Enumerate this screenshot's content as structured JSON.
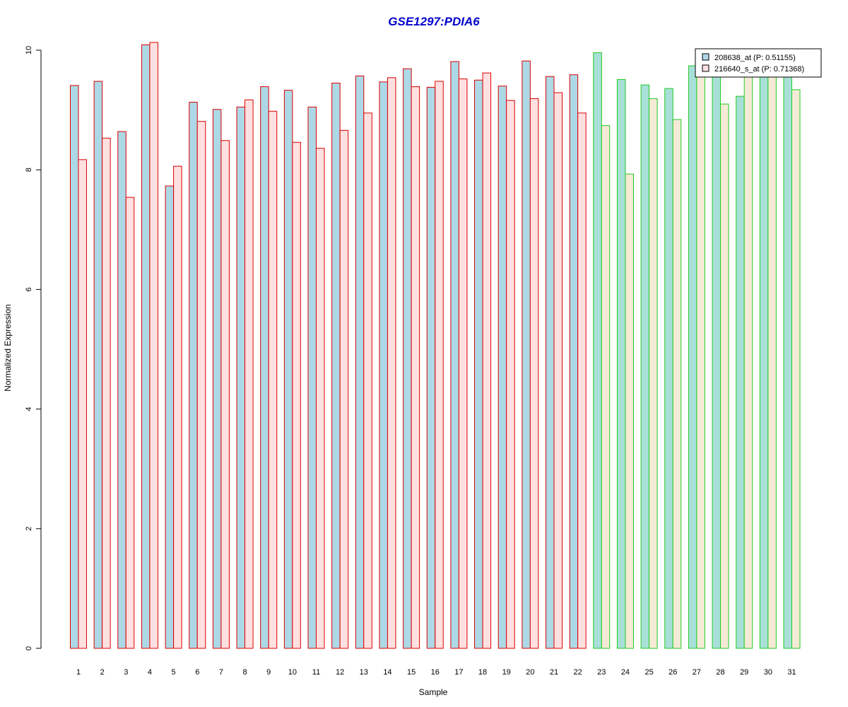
{
  "chart_data": {
    "type": "bar",
    "title": "GSE1297:PDIA6",
    "xlabel": "Sample",
    "ylabel": "Normalized Expression",
    "ylim": [
      0,
      10
    ],
    "yticks": [
      "0",
      "2",
      "4",
      "6",
      "8",
      "10"
    ],
    "categories": [
      "1",
      "2",
      "3",
      "4",
      "5",
      "6",
      "7",
      "8",
      "9",
      "10",
      "11",
      "12",
      "13",
      "14",
      "15",
      "16",
      "17",
      "18",
      "19",
      "20",
      "21",
      "22",
      "23",
      "24",
      "25",
      "26",
      "27",
      "28",
      "29",
      "30",
      "31"
    ],
    "group_colors": [
      "#dd0000",
      "#dd0000",
      "#dd0000",
      "#dd0000",
      "#dd0000",
      "#dd0000",
      "#dd0000",
      "#dd0000",
      "#dd0000",
      "#dd0000",
      "#dd0000",
      "#dd0000",
      "#dd0000",
      "#dd0000",
      "#dd0000",
      "#dd0000",
      "#dd0000",
      "#dd0000",
      "#dd0000",
      "#dd0000",
      "#dd0000",
      "#dd0000",
      "#22cc22",
      "#22cc22",
      "#22cc22",
      "#22cc22",
      "#22cc22",
      "#22cc22",
      "#22cc22",
      "#22cc22",
      "#22cc22"
    ],
    "series": [
      {
        "name": "208638_at (P: 0.51155)",
        "fill": "#add8e6",
        "fill_alt": "#a8e0d8",
        "values": [
          9.41,
          9.48,
          8.64,
          10.09,
          7.73,
          9.13,
          9.01,
          9.05,
          9.39,
          9.33,
          9.05,
          9.45,
          9.57,
          9.47,
          9.69,
          9.38,
          9.81,
          9.5,
          9.4,
          9.82,
          9.56,
          9.59,
          9.96,
          9.51,
          9.42,
          9.36,
          9.74,
          9.57,
          9.23,
          9.59,
          9.61
        ]
      },
      {
        "name": "216640_s_at (P: 0.71368)",
        "fill": "#ffe0e0",
        "fill_alt": "#f5ead6",
        "values": [
          8.17,
          8.53,
          7.54,
          10.13,
          8.06,
          8.81,
          8.49,
          9.17,
          8.98,
          8.46,
          8.36,
          8.66,
          8.95,
          9.54,
          9.39,
          9.48,
          9.52,
          9.62,
          9.16,
          9.19,
          9.29,
          8.95,
          8.74,
          7.93,
          9.19,
          8.84,
          9.57,
          9.1,
          9.57,
          9.57,
          9.34
        ]
      }
    ],
    "legend_position": "top-right",
    "grid": false
  }
}
